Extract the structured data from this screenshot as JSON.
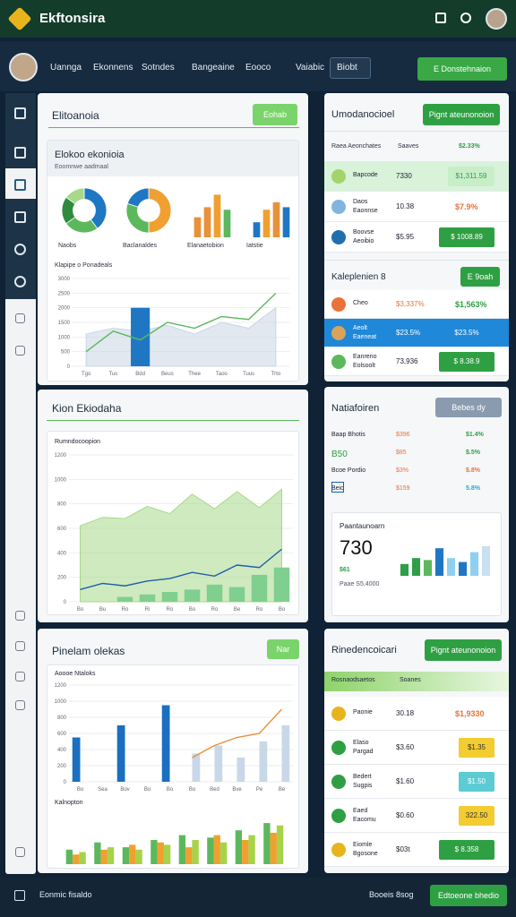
{
  "header": {
    "app_name": "Ekftonsira"
  },
  "nav": {
    "items": [
      "Uannga",
      "Ekonnens",
      "Sotndes",
      "Bangeaine",
      "Eooco",
      "Vaiabic",
      "Biobt"
    ],
    "action": "E Donstehnaion"
  },
  "overview": {
    "title": "Elitoanoia",
    "button": "Eohab",
    "card_title": "Elokoo ekonioia",
    "card_subtitle": "Eoomnwe aadmaal",
    "chart_data": [
      {
        "type": "pie",
        "title": "Naobs",
        "donut": true,
        "values": [
          40,
          25,
          20,
          15
        ],
        "colors": [
          "#1f77c4",
          "#5cb85c",
          "#2e8b3e",
          "#a8d88a"
        ]
      },
      {
        "type": "pie",
        "title": "Baclanaldes",
        "donut": true,
        "values": [
          50,
          30,
          20
        ],
        "colors": [
          "#f0a030",
          "#5cb85c",
          "#1f77c4"
        ]
      },
      {
        "type": "bar",
        "title": "Elanaetobion",
        "ylim": [
          0,
          100
        ],
        "series": [
          {
            "colors": [
              "#e8913a",
              "#e8913a",
              "#f0a030",
              "#5cb85c"
            ],
            "values": [
              40,
              60,
              85,
              55
            ]
          }
        ]
      },
      {
        "type": "bar",
        "title": "Iatstie",
        "ylim": [
          0,
          100
        ],
        "series": [
          {
            "colors": [
              "#1f77c4",
              "#f0a030",
              "#e8913a",
              "#1f77c4"
            ],
            "values": [
              30,
              55,
              70,
              60
            ]
          }
        ]
      },
      {
        "type": "line",
        "title": "Klapipe o Ponadeals",
        "grid": true,
        "categories": [
          "Tgo",
          "Tus",
          "Bdd",
          "Beus",
          "Thee",
          "Taoo",
          "Tuus",
          "Trto"
        ],
        "ylim": [
          0,
          3000
        ],
        "yticks": [
          0,
          500,
          1000,
          1500,
          2000,
          2500,
          3000
        ],
        "series": [
          {
            "kind": "area",
            "color": "#c9d6e3",
            "values": [
              1100,
              1300,
              1200,
              1400,
              1100,
              1500,
              1300,
              2000
            ]
          },
          {
            "kind": "bar",
            "color": "#1f77c4",
            "values": [
              null,
              null,
              2000,
              null,
              null,
              null,
              null,
              null
            ]
          },
          {
            "kind": "line",
            "color": "#5cb85c",
            "values": [
              500,
              1200,
              900,
              1500,
              1300,
              1700,
              1600,
              2500
            ]
          }
        ]
      }
    ]
  },
  "summary": {
    "title": "Umodanocioel",
    "button": "Pignt ateunonoion",
    "header": [
      "Raea Aeonchates",
      "Saaves",
      "$2.33%"
    ],
    "rows": [
      {
        "label": "Bapcode",
        "value": "7330",
        "badge": "$1,311.59"
      },
      {
        "label": "Daos",
        "sub": "Eaonnse",
        "value": "10.38",
        "badge": "$7.9%"
      },
      {
        "label": "Boovse",
        "sub": "Aeoibio",
        "value": "$5.95",
        "badge": "$ 1008.89"
      }
    ],
    "sub_title": "Kaleplenien 8",
    "sub_button": "E 9oah",
    "sub_rows": [
      {
        "label": "Cheo",
        "value": "$3,337%",
        "badge": "$1,563%"
      },
      {
        "label": "Aeolt",
        "sub": "Eaeneat",
        "value": "$23.5%",
        "badge": "$23.5%"
      },
      {
        "label": "Eanreno",
        "sub": "Eolsoolt",
        "value": "73,936",
        "badge": "$ 8.38.9"
      }
    ]
  },
  "trend": {
    "title": "Kion Ekiodaha",
    "chart_data": {
      "type": "line",
      "title": "Rumndocoopion",
      "grid": true,
      "categories": [
        "Bo",
        "Bu",
        "Ro",
        "Ri",
        "Ro",
        "Bo",
        "Ro",
        "Be",
        "Ro",
        "Bo"
      ],
      "ylim": [
        0,
        1200
      ],
      "yticks": [
        0,
        200,
        400,
        600,
        800,
        1000,
        1200
      ],
      "series": [
        {
          "kind": "area",
          "color": "#a8d88a",
          "values": [
            620,
            690,
            680,
            780,
            720,
            880,
            760,
            900,
            770,
            920
          ]
        },
        {
          "kind": "bar",
          "color": "#7fcf8f",
          "values": [
            null,
            null,
            40,
            60,
            80,
            100,
            140,
            120,
            220,
            280
          ]
        },
        {
          "kind": "line",
          "color": "#1f5fa8",
          "values": [
            100,
            150,
            130,
            170,
            190,
            240,
            210,
            300,
            280,
            430
          ]
        }
      ]
    }
  },
  "info": {
    "title": "Natiafoiren",
    "button": "Bebes dy",
    "rows": [
      [
        "Baap Bhotis",
        "$396",
        "$1.4%"
      ],
      [
        "B50",
        "$85",
        "$.5%"
      ],
      [
        "Bcoe Pordio",
        "$3%",
        "$.8%"
      ],
      [
        "Beio",
        "$159",
        "5.8%"
      ]
    ],
    "card": {
      "title": "Paantaunoarn",
      "big": "730",
      "small": "$61",
      "note": "Paae S5,4000",
      "chart_data": {
        "type": "bar",
        "ylim": [
          0,
          100
        ],
        "series": [
          {
            "colors": [
              "#2e9e48",
              "#2e9e48",
              "#5cb85c",
              "#1f77c4",
              "#8fd0f0",
              "#1f77c4",
              "#8fd0f0",
              "#c8e0f0"
            ],
            "values": [
              30,
              45,
              40,
              70,
              45,
              35,
              60,
              75
            ]
          }
        ]
      }
    }
  },
  "blocks": {
    "title": "Pinelam olekas",
    "button": "Nar",
    "chart_data": [
      {
        "type": "line",
        "title": "Aoooe Ntaloks",
        "grid": true,
        "categories": [
          "Bo",
          "Sea",
          "Bov",
          "Bo",
          "Bo",
          "Bo",
          "Bed",
          "Bve",
          "Pe",
          "Be"
        ],
        "ylim": [
          0,
          1200
        ],
        "yticks": [
          0,
          200,
          400,
          600,
          800,
          1000,
          1200
        ],
        "series": [
          {
            "kind": "bar",
            "color": "#1a6fc0",
            "values": [
              550,
              null,
              700,
              null,
              950,
              null,
              null,
              null,
              null,
              null
            ]
          },
          {
            "kind": "bar",
            "color": "#c8d8e8",
            "values": [
              null,
              null,
              null,
              null,
              null,
              350,
              450,
              300,
              500,
              700
            ]
          },
          {
            "kind": "line",
            "color": "#e8913a",
            "values": [
              null,
              null,
              null,
              null,
              null,
              300,
              450,
              550,
              600,
              900
            ]
          }
        ]
      },
      {
        "type": "bar",
        "title": "Kalnopton",
        "ylim": [
          0,
          100
        ],
        "series": [
          {
            "color": "#5cb85c",
            "values": [
              30,
              45,
              35,
              50,
              60,
              55,
              70,
              85
            ]
          },
          {
            "color": "#f0a030",
            "values": [
              20,
              30,
              40,
              45,
              35,
              60,
              50,
              65
            ]
          },
          {
            "color": "#a6d34a",
            "values": [
              25,
              35,
              30,
              40,
              50,
              45,
              60,
              80
            ]
          }
        ]
      }
    ]
  },
  "recs": {
    "title": "Rinedencoicari",
    "button": "Pignt ateunonoion",
    "header": [
      "Rosnaodsaetos",
      "Soanes"
    ],
    "rows": [
      {
        "label": "Paonie",
        "value": "30.18",
        "badge": "$1,9330"
      },
      {
        "label": "Elaso",
        "sub": "Pargad",
        "value": "$3.60",
        "badge": "$1.35"
      },
      {
        "label": "Bedert",
        "sub": "Sugpis",
        "value": "$1.60",
        "badge": "$1.50"
      },
      {
        "label": "Eaed",
        "sub": "Eacomu",
        "value": "$0.60",
        "badge": "322.50"
      },
      {
        "label": "Eiomle",
        "sub": "Bgosone",
        "value": "$03t",
        "badge": "$ 8.358"
      }
    ]
  },
  "footer": {
    "left": "Eonmic fisaldo",
    "right": "Booeis 8sog",
    "button": "Edtoeone bhedio"
  }
}
